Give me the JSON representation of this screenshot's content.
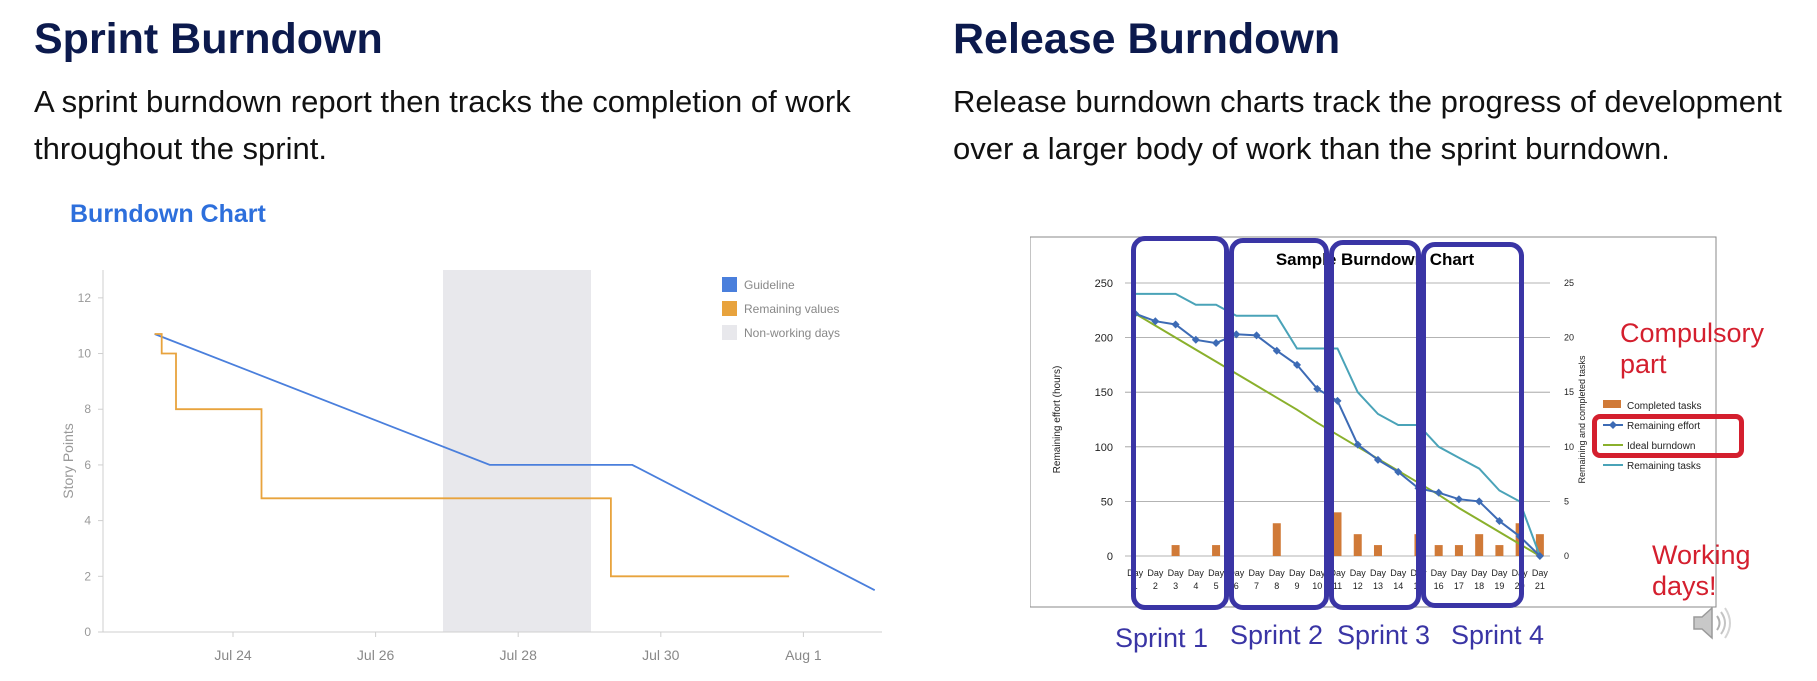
{
  "left": {
    "title": "Sprint Burndown",
    "description": "A sprint burndown report then tracks the completion of work throughout the sprint."
  },
  "right": {
    "title": "Release Burndown",
    "description": "Release burndown charts track the progress of development over a larger body of work than the sprint burndown."
  },
  "annotations": {
    "sprints": [
      "Sprint 1",
      "Sprint 2",
      "Sprint 3",
      "Sprint 4"
    ],
    "compulsory_line1": "Compulsory",
    "compulsory_line2": "part",
    "working_line1": "Working",
    "working_line2": "days!"
  },
  "colors": {
    "guideline": "#4a7fdc",
    "remaining": "#e8a33d",
    "nonworking": "#e8e8ec",
    "annotation_blue": "#3a35a5",
    "annotation_red": "#d41f2e"
  },
  "chart_data": [
    {
      "type": "line",
      "title": "Burndown Chart",
      "ylabel": "Story Points",
      "ylim": [
        0,
        13
      ],
      "yticks": [
        0,
        2,
        4,
        6,
        8,
        10,
        12
      ],
      "x_ticks": [
        "Jul 24",
        "Jul 26",
        "Jul 28",
        "Jul 30",
        "Aug 1"
      ],
      "legend": [
        "Guideline",
        "Remaining values",
        "Non-working days"
      ],
      "legend_position": "top-right",
      "non_working_days": [
        "Jul 27",
        "Jul 29"
      ],
      "series": [
        {
          "name": "Guideline",
          "points": [
            [
              "Jul 22.9",
              10.7
            ],
            [
              "Jul 27.6",
              6.0
            ],
            [
              "Jul 29.6",
              6.0
            ],
            [
              "Aug 2.0",
              1.5
            ]
          ]
        },
        {
          "name": "Remaining values",
          "steps": [
            [
              "Jul 22.9",
              10.7
            ],
            [
              "Jul 23.0",
              10.0
            ],
            [
              "Jul 23.2",
              8.0
            ],
            [
              "Jul 24.4",
              4.8
            ],
            [
              "Jul 29.3",
              2.0
            ],
            [
              "Aug 0.8",
              2.0
            ]
          ]
        }
      ]
    },
    {
      "type": "line",
      "title": "Sample Burndown Chart",
      "ylabel": "Remaining effort (hours)",
      "y2label": "Remaining and completed tasks",
      "ylim": [
        0,
        250
      ],
      "y2lim": [
        0,
        25
      ],
      "yticks": [
        0,
        50,
        100,
        150,
        200,
        250
      ],
      "y2ticks": [
        0,
        5,
        10,
        15,
        20,
        25
      ],
      "day_labels": [
        "1",
        "2",
        "3",
        "4",
        "5",
        "6",
        "7",
        "8",
        "9",
        "10",
        "11",
        "12",
        "13",
        "14",
        "15",
        "16",
        "17",
        "18",
        "19",
        "20",
        "21"
      ],
      "day_word": "Day",
      "legend": [
        "Completed tasks",
        "Remaining effort",
        "Ideal burndown",
        "Remaining tasks"
      ],
      "series": [
        {
          "name": "Completed tasks",
          "kind": "bar",
          "values": [
            0,
            0,
            1,
            0,
            1,
            0,
            0,
            3,
            0,
            0,
            4,
            2,
            1,
            0,
            2,
            1,
            1,
            2,
            1,
            3,
            2
          ]
        },
        {
          "name": "Remaining effort",
          "values": [
            222,
            215,
            212,
            198,
            195,
            203,
            202,
            188,
            175,
            153,
            142,
            102,
            88,
            77,
            62,
            58,
            52,
            50,
            32,
            18,
            0
          ]
        },
        {
          "name": "Ideal burndown",
          "values": [
            222,
            211,
            200,
            189,
            178,
            167,
            156,
            145,
            134,
            122,
            111,
            100,
            89,
            78,
            67,
            56,
            44,
            33,
            22,
            11,
            0
          ]
        },
        {
          "name": "Remaining tasks",
          "values": [
            24,
            24,
            24,
            23,
            23,
            22,
            22,
            22,
            19,
            19,
            19,
            15,
            13,
            12,
            12,
            10,
            9,
            8,
            6,
            5,
            0
          ]
        }
      ]
    }
  ]
}
